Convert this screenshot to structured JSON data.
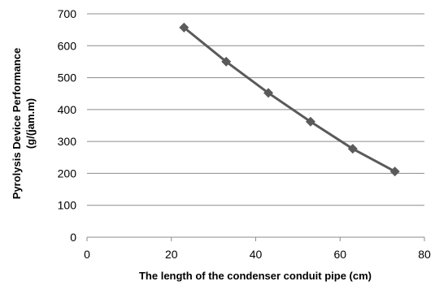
{
  "chart_data": {
    "type": "line",
    "title": "",
    "xlabel": "The length of the condenser conduit pipe (cm)",
    "ylabel_line1": "Pyrolysis Device Performance",
    "ylabel_line2": "(g/(jam.m)",
    "xlim": [
      0,
      80
    ],
    "ylim": [
      0,
      700
    ],
    "x_ticks": [
      0,
      20,
      40,
      60,
      80
    ],
    "y_ticks": [
      0,
      100,
      200,
      300,
      400,
      500,
      600,
      700
    ],
    "grid": "horizontal",
    "legend": "none",
    "marker": "diamond",
    "series": [
      {
        "color": "#5a5a5a",
        "points": [
          {
            "x": 23,
            "y": 657
          },
          {
            "x": 33,
            "y": 550
          },
          {
            "x": 43,
            "y": 452
          },
          {
            "x": 53,
            "y": 362
          },
          {
            "x": 63,
            "y": 277
          },
          {
            "x": 73,
            "y": 206
          }
        ]
      }
    ]
  },
  "colors": {
    "gridline": "#8c8c8c",
    "axis": "#8c8c8c",
    "series": "#5a5a5a"
  }
}
